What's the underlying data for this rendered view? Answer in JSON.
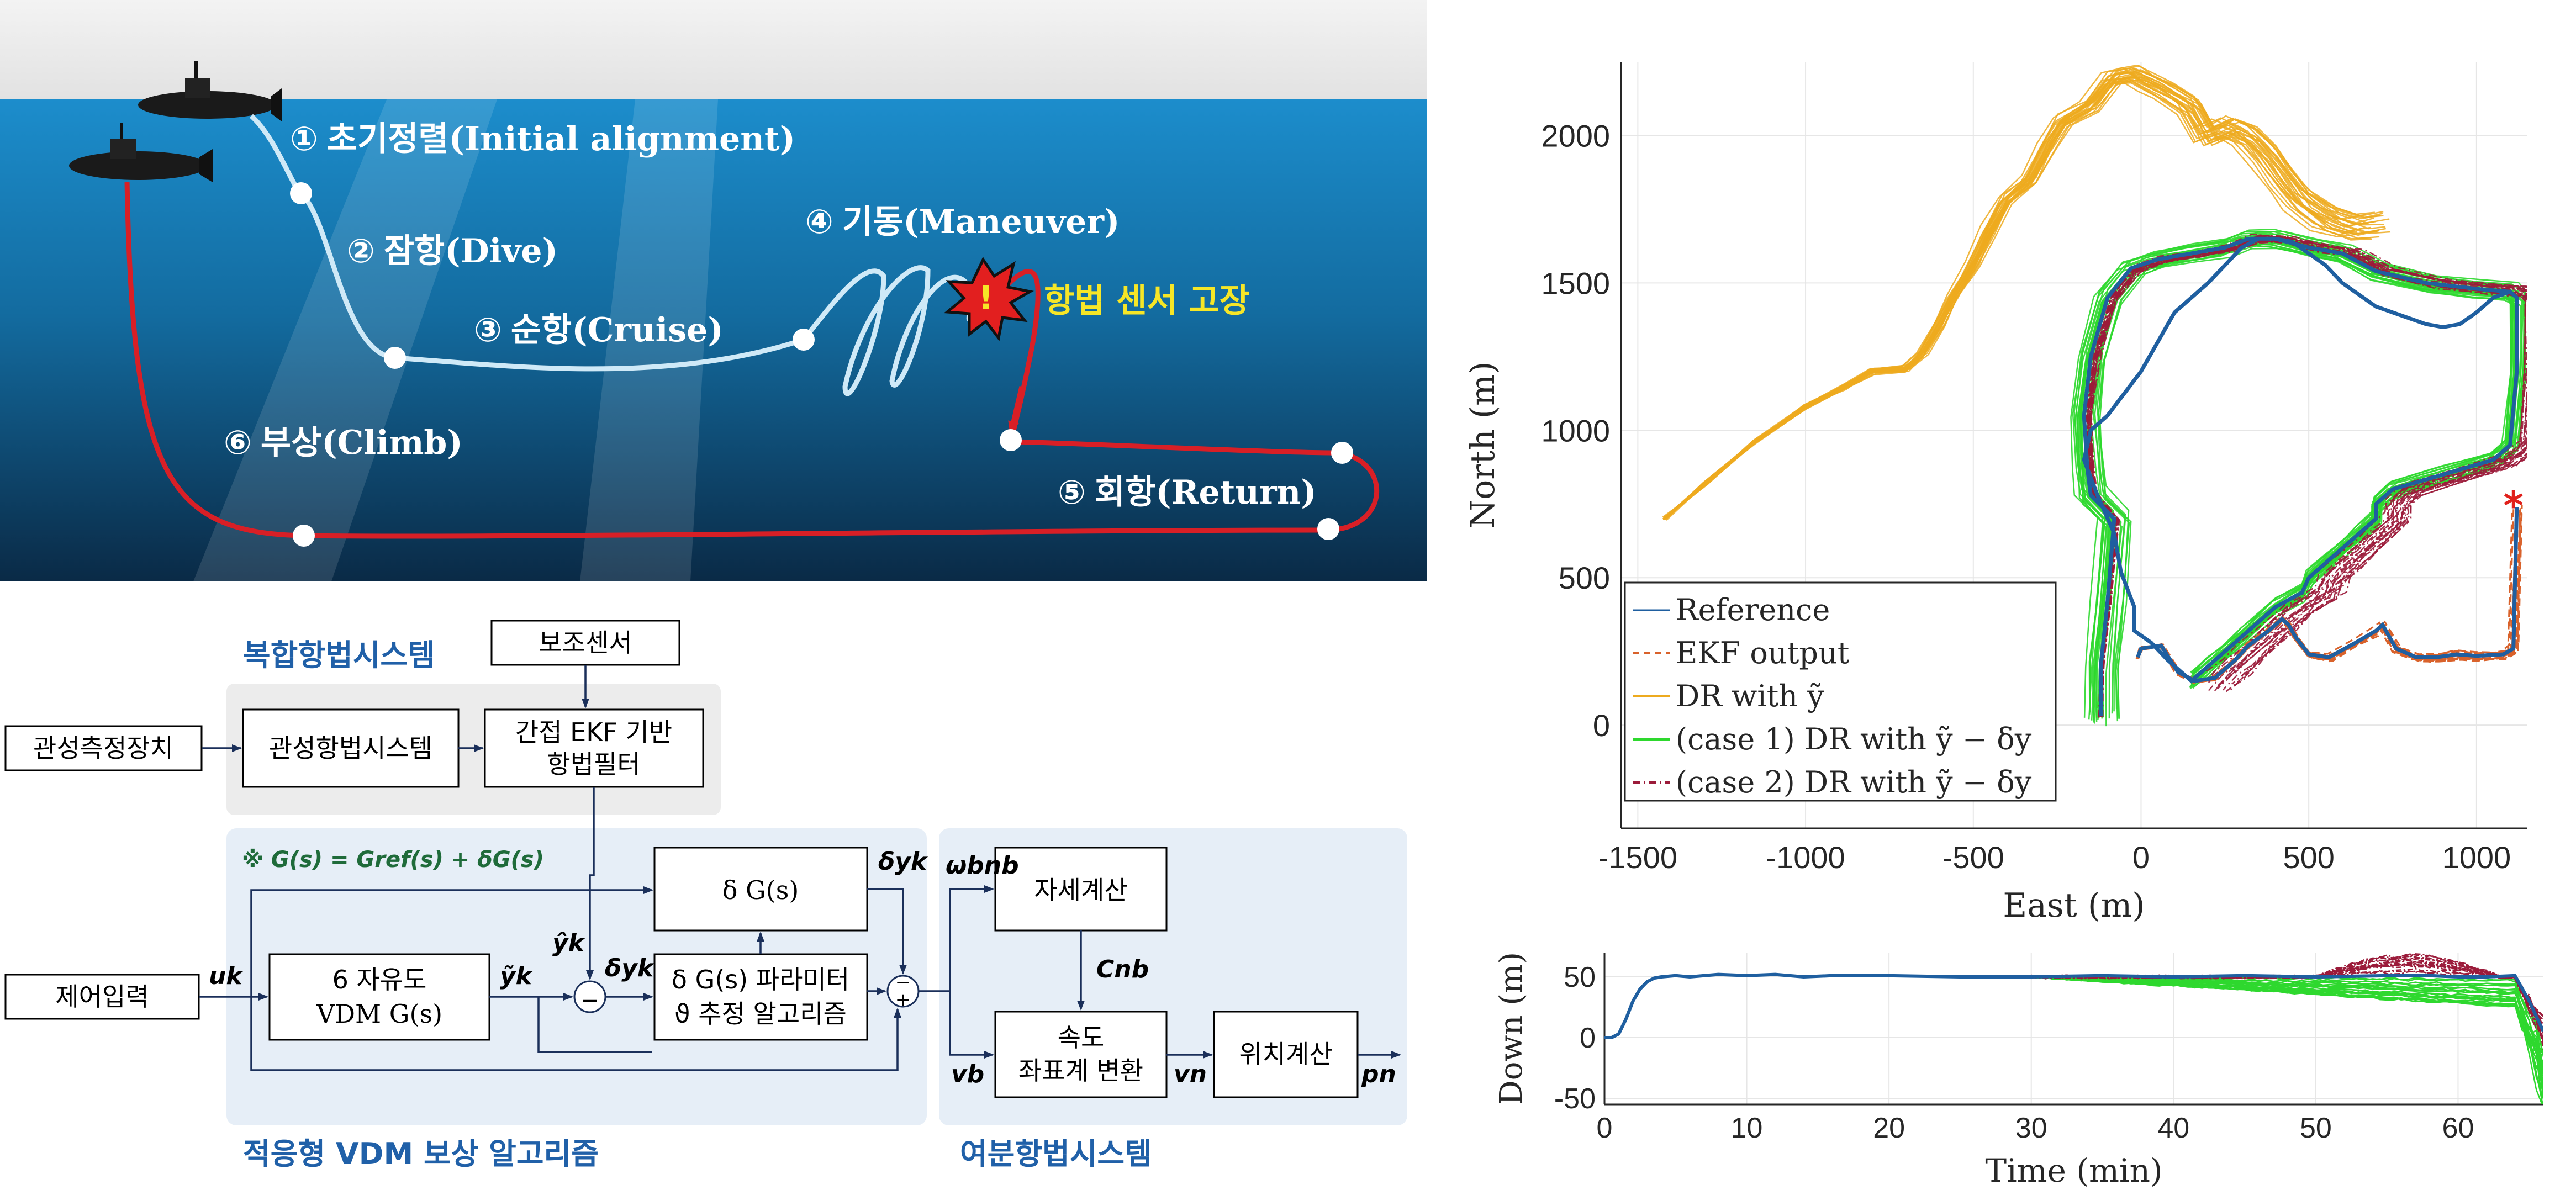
{
  "scenario": {
    "stages": [
      {
        "num": "①",
        "ko": "초기정렬",
        "en": "(Initial alignment)"
      },
      {
        "num": "②",
        "ko": "잠항",
        "en": "(Dive)"
      },
      {
        "num": "③",
        "ko": "순항",
        "en": "(Cruise)"
      },
      {
        "num": "④",
        "ko": "기동",
        "en": "(Maneuver)"
      },
      {
        "num": "⑤",
        "ko": "회항",
        "en": "(Return)"
      },
      {
        "num": "⑥",
        "ko": "부상",
        "en": "(Climb)"
      }
    ],
    "fault_label": "항법 센서 고장",
    "fault_mark": "!",
    "colors": {
      "sea_top": "#1a86c2",
      "sea_bottom": "#0a2a4a",
      "path_light": "#cfe9f7",
      "path_red": "#d81f26",
      "fault_text": "#f6e627"
    }
  },
  "block_diagram": {
    "groups": {
      "integrated": "복합항법시스템",
      "adaptive": "적응형 VDM 보상 알고리즘",
      "redundant": "여분항법시스템"
    },
    "blocks": {
      "aux_sensor": "보조센서",
      "imu": "관성측정장치",
      "ins": "관성항법시스템",
      "ekf_l1": "간접 EKF 기반",
      "ekf_l2": "항법필터",
      "control_input": "제어입력",
      "vdm_l1": "6 자유도",
      "vdm_l2": "VDM G(s)",
      "delta_g": "δ G(s)",
      "param_l1": "δ G(s) 파라미터",
      "param_l2": "ϑ 추정 알고리즘",
      "attitude": "자세계산",
      "vel_l1": "속도",
      "vel_l2": "좌표계 변환",
      "position": "위치계산"
    },
    "equation": "※ G(s) = Gref(s) + δG(s)",
    "signals": {
      "uk": "uk",
      "yhat": "ŷk",
      "ytilde": "ỹk",
      "dyk": "δyk",
      "dyk2": "δyk",
      "omega": "ωbnb",
      "cbn": "Cnb",
      "vb": "vb",
      "vn": "vn",
      "pn": "pn",
      "minus": "−",
      "plus": "+"
    },
    "colors": {
      "group_fill": "#e6eef7",
      "group_gray": "#ececec",
      "header": "#2060a8"
    }
  },
  "chart_data": [
    {
      "type": "line",
      "xlabel": "East (m)",
      "ylabel": "North (m)",
      "xlim": [
        -1550,
        1150
      ],
      "ylim": [
        -350,
        2250
      ],
      "xticks": [
        -1500,
        -1000,
        -500,
        0,
        500,
        1000
      ],
      "yticks": [
        0,
        500,
        1000,
        1500,
        2000
      ],
      "grid": true,
      "legend_position": "bottom-left",
      "series": [
        {
          "name": "Reference",
          "color": "#1f5fa0",
          "style": "solid",
          "x": [
            -120,
            -120,
            -100,
            -80,
            -150,
            -160,
            -170,
            -150,
            -100,
            -30,
            50,
            150,
            250,
            320,
            400,
            500,
            600,
            700,
            850,
            1000,
            1100,
            1120,
            1120,
            1100,
            1050,
            900,
            750,
            700,
            700,
            650,
            600,
            550,
            500,
            480,
            400,
            350,
            300,
            250,
            200,
            150,
            80,
            30,
            -20,
            -20,
            -60,
            -80,
            -130,
            -160,
            -170,
            -160,
            -150,
            -100,
            0,
            50,
            100,
            200,
            250,
            300,
            350,
            400,
            450,
            500,
            550,
            600,
            650,
            700,
            750,
            800,
            850,
            900,
            950,
            1000,
            1050,
            1100,
            1120
          ],
          "y": [
            30,
            200,
            420,
            700,
            780,
            870,
            1050,
            1250,
            1450,
            1550,
            1580,
            1600,
            1620,
            1650,
            1650,
            1620,
            1600,
            1540,
            1500,
            1480,
            1470,
            1450,
            1200,
            950,
            900,
            850,
            800,
            750,
            700,
            650,
            600,
            550,
            500,
            450,
            400,
            350,
            300,
            250,
            200,
            150,
            220,
            280,
            320,
            400,
            520,
            650,
            780,
            870,
            900,
            950,
            1000,
            1050,
            1200,
            1300,
            1400,
            1500,
            1560,
            1620,
            1650,
            1650,
            1640,
            1600,
            1560,
            1500,
            1460,
            1420,
            1400,
            1380,
            1360,
            1350,
            1360,
            1400,
            1450,
            1470,
            1450
          ]
        },
        {
          "name": "EKF output",
          "color": "#d9622b",
          "style": "dashed",
          "x": [
            -10,
            0,
            60,
            110,
            160,
            220,
            280,
            320,
            380,
            420,
            440,
            460,
            500,
            560,
            640,
            700,
            720,
            760,
            820,
            880,
            940,
            1000,
            1080,
            1110,
            1120
          ],
          "y": [
            230,
            260,
            270,
            180,
            150,
            160,
            220,
            270,
            320,
            360,
            340,
            300,
            240,
            230,
            280,
            320,
            340,
            260,
            230,
            230,
            240,
            235,
            240,
            260,
            740
          ]
        },
        {
          "name": "DR with ỹ",
          "color": "#edaa1f",
          "style": "solid",
          "x": [
            -1420,
            -1300,
            -1150,
            -1000,
            -880,
            -800,
            -700,
            -650,
            -600,
            -560,
            -500,
            -450,
            -400,
            -330,
            -280,
            -230,
            -150,
            -80,
            -20,
            30,
            80,
            150,
            200,
            260,
            320,
            380,
            430,
            480,
            560,
            640,
            700
          ],
          "y": [
            700,
            820,
            960,
            1080,
            1150,
            1200,
            1210,
            1260,
            1360,
            1450,
            1560,
            1680,
            1780,
            1850,
            1960,
            2050,
            2100,
            2200,
            2210,
            2180,
            2150,
            2100,
            2000,
            2030,
            2000,
            1930,
            1850,
            1780,
            1720,
            1690,
            1700
          ]
        },
        {
          "name": "(case 1) DR with ỹ − δy",
          "color": "#2ed82e",
          "style": "solid",
          "x": [],
          "y": []
        },
        {
          "name": "(case 2) DR with ỹ − δy",
          "color": "#9b1b3a",
          "style": "dashdot",
          "x": [],
          "y": []
        }
      ],
      "annotations": [
        {
          "text": "*",
          "x": 1110,
          "y": 740,
          "color": "#e0201b"
        }
      ]
    },
    {
      "type": "line",
      "xlabel": "Time (min)",
      "ylabel": "Down (m)",
      "xlim": [
        0,
        66
      ],
      "ylim": [
        -55,
        70
      ],
      "xticks": [
        0,
        10,
        20,
        30,
        40,
        50,
        60
      ],
      "yticks": [
        -50,
        0,
        50
      ],
      "grid": true,
      "series": [
        {
          "name": "Reference",
          "color": "#1f5fa0",
          "style": "solid",
          "x": [
            0,
            0.5,
            1,
            1.5,
            2,
            2.5,
            3,
            3.5,
            4,
            5,
            6,
            8,
            10,
            12,
            14,
            16,
            20,
            25,
            30,
            35,
            40,
            45,
            50,
            55,
            58,
            60,
            62,
            64,
            65,
            66
          ],
          "y": [
            0,
            0,
            3,
            15,
            30,
            40,
            46,
            49,
            50,
            51,
            50,
            52,
            51,
            52,
            50,
            51,
            51,
            50,
            50,
            51,
            50,
            51,
            50,
            51,
            51,
            50,
            50,
            51,
            30,
            5
          ]
        }
      ]
    }
  ]
}
